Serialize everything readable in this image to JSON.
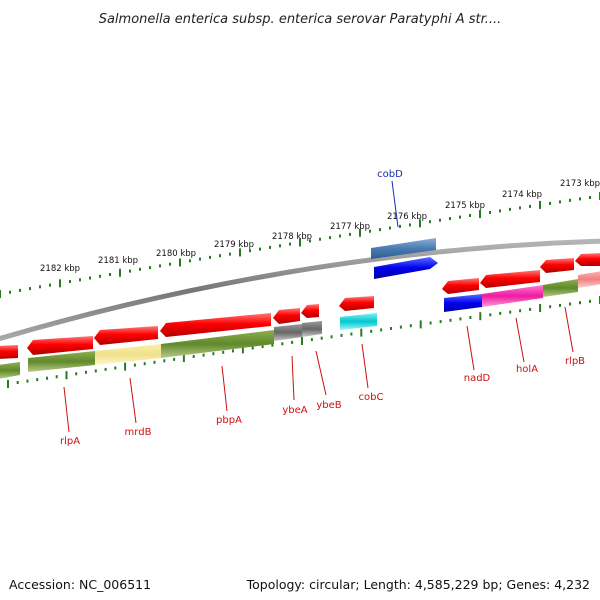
{
  "title": "Salmonella enterica subsp. enterica serovar Paratyphi A str....",
  "footer": {
    "accession": "Accession: NC_006511",
    "summary": "Topology: circular; Length: 4,585,229 bp; Genes: 4,232"
  },
  "colors": {
    "backbone": "#8a8a8a",
    "tick": "#2a7a22",
    "label_red": "#cc1111",
    "label_blue": "#1a2fb0"
  },
  "scale_ticks": [
    "2182 kbp",
    "2181 kbp",
    "2180 kbp",
    "2179 kbp",
    "2178 kbp",
    "2177 kbp",
    "2176 kbp",
    "2175 kbp",
    "2174 kbp",
    "2173 kbp"
  ],
  "genes": [
    {
      "name": "cobD",
      "label_color": "#1a2fb0"
    },
    {
      "name": "rlpA",
      "label_color": "#cc1111"
    },
    {
      "name": "mrdB",
      "label_color": "#cc1111"
    },
    {
      "name": "pbpA",
      "label_color": "#cc1111"
    },
    {
      "name": "ybeA",
      "label_color": "#cc1111"
    },
    {
      "name": "ybeB",
      "label_color": "#cc1111"
    },
    {
      "name": "cobC",
      "label_color": "#cc1111"
    },
    {
      "name": "nadD",
      "label_color": "#cc1111"
    },
    {
      "name": "holA",
      "label_color": "#cc1111"
    },
    {
      "name": "rlpB",
      "label_color": "#cc1111"
    }
  ]
}
